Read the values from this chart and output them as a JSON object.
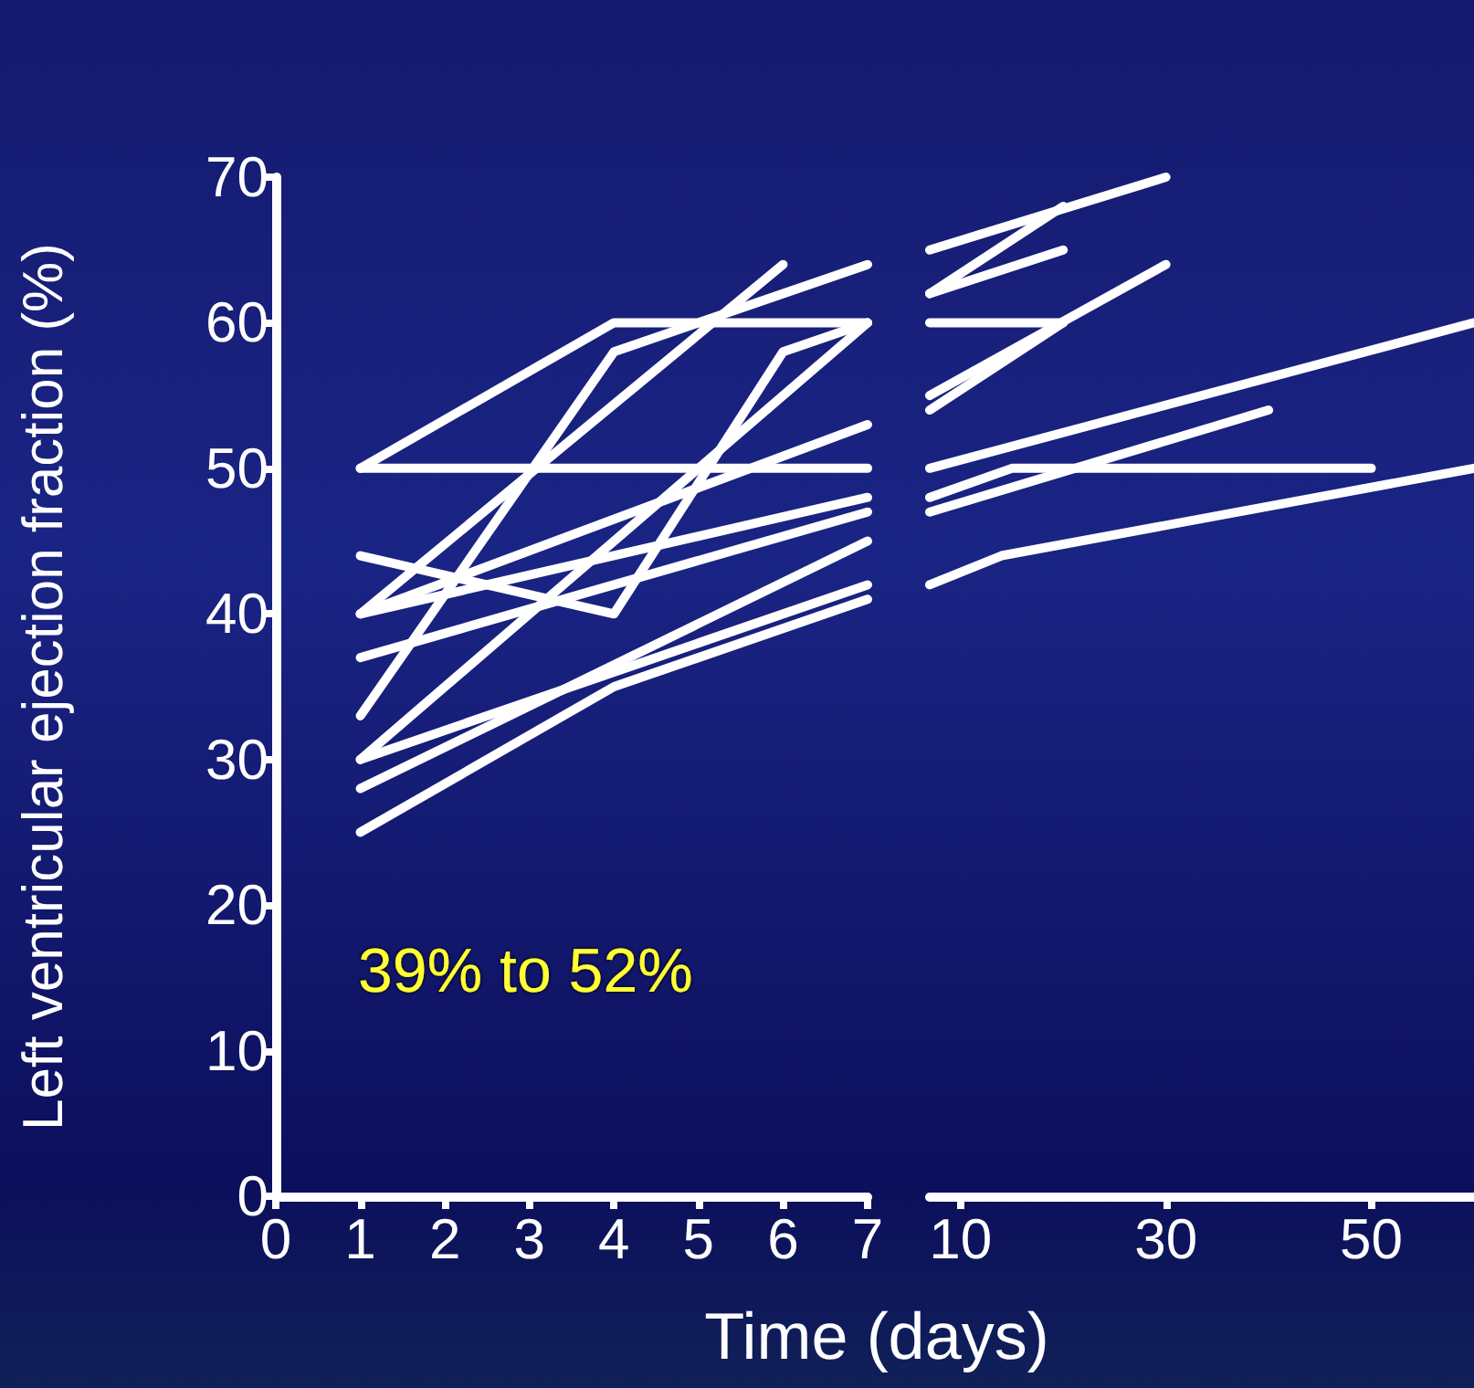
{
  "chart_data": [
    {
      "type": "line",
      "ylabel": "Left ventricular ejection fraction (%)",
      "xlabel": "Time (days)",
      "annotations": [
        "39% to 52%"
      ],
      "xlim": [
        0,
        7
      ],
      "xticks": [
        0,
        1,
        2,
        3,
        4,
        5,
        6,
        7
      ],
      "ylim": [
        0,
        70
      ],
      "yticks": [
        0,
        10,
        20,
        30,
        40,
        50,
        60,
        70
      ],
      "grid": false,
      "marker": "none",
      "line_style": "solid",
      "series": [
        {
          "color": "#ffffff",
          "x": [
            1,
            4,
            7
          ],
          "values": [
            50,
            60,
            60
          ]
        },
        {
          "color": "#ffffff",
          "x": [
            1,
            7
          ],
          "values": [
            50,
            50
          ]
        },
        {
          "color": "#ffffff",
          "x": [
            1,
            6
          ],
          "values": [
            40,
            64
          ]
        },
        {
          "color": "#ffffff",
          "x": [
            1,
            7
          ],
          "values": [
            30,
            60
          ]
        },
        {
          "color": "#ffffff",
          "x": [
            1,
            4,
            7
          ],
          "values": [
            33,
            58,
            64
          ]
        },
        {
          "color": "#ffffff",
          "x": [
            1,
            4,
            6,
            7
          ],
          "values": [
            44,
            40,
            58,
            60
          ]
        },
        {
          "color": "#ffffff",
          "x": [
            1,
            7
          ],
          "values": [
            40,
            53
          ]
        },
        {
          "color": "#ffffff",
          "x": [
            1,
            7
          ],
          "values": [
            37,
            47
          ]
        },
        {
          "color": "#ffffff",
          "x": [
            1,
            7
          ],
          "values": [
            40,
            48
          ]
        },
        {
          "color": "#ffffff",
          "x": [
            1,
            7
          ],
          "values": [
            30,
            42
          ]
        },
        {
          "color": "#ffffff",
          "x": [
            1,
            7
          ],
          "values": [
            28,
            45
          ]
        },
        {
          "color": "#ffffff",
          "x": [
            1,
            4,
            7
          ],
          "values": [
            25,
            35,
            41
          ]
        }
      ]
    },
    {
      "type": "line",
      "tick_labels": "x",
      "xlim": [
        7,
        60
      ],
      "xticks": [
        10,
        30,
        50
      ],
      "ylim": [
        0,
        70
      ],
      "grid": false,
      "marker": "none",
      "line_style": "solid",
      "series": [
        {
          "color": "#ffffff",
          "x": [
            7,
            30
          ],
          "values": [
            65,
            70
          ]
        },
        {
          "color": "#ffffff",
          "x": [
            7,
            20
          ],
          "values": [
            62,
            68
          ]
        },
        {
          "color": "#ffffff",
          "x": [
            7,
            20
          ],
          "values": [
            62,
            65
          ]
        },
        {
          "color": "#ffffff",
          "x": [
            7,
            20
          ],
          "values": [
            60,
            60
          ]
        },
        {
          "color": "#ffffff",
          "x": [
            7,
            20
          ],
          "values": [
            54,
            60
          ]
        },
        {
          "color": "#ffffff",
          "x": [
            7,
            30
          ],
          "values": [
            55,
            64
          ]
        },
        {
          "color": "#ffffff",
          "x": [
            7,
            60
          ],
          "values": [
            50,
            60
          ]
        },
        {
          "color": "#ffffff",
          "x": [
            7,
            40
          ],
          "values": [
            47,
            54
          ]
        },
        {
          "color": "#ffffff",
          "x": [
            7,
            15,
            50
          ],
          "values": [
            48,
            50,
            50
          ]
        },
        {
          "color": "#ffffff",
          "x": [
            7,
            14,
            60
          ],
          "values": [
            42,
            44,
            50
          ]
        }
      ]
    }
  ]
}
